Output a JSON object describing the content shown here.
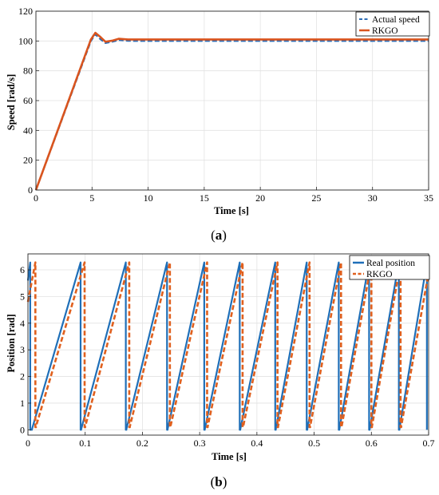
{
  "chart_data": [
    {
      "type": "line",
      "caption": {
        "open": "(",
        "letter": "a",
        "close": ")"
      },
      "xlabel": "Time [s]",
      "ylabel": "Speed [rad/s]",
      "xlim": [
        0,
        35
      ],
      "ylim": [
        0,
        120
      ],
      "xticks": [
        0,
        5,
        10,
        15,
        20,
        25,
        30,
        35
      ],
      "yticks": [
        0,
        20,
        40,
        60,
        80,
        100,
        120
      ],
      "grid": true,
      "legend_position": "top-right",
      "series": [
        {
          "name": "Actual speed",
          "color": "#2b6cb5",
          "style": "dashed",
          "x": [
            0,
            4.9,
            5.3,
            5.7,
            6.2,
            6.8,
            7.4,
            8.2,
            9.5,
            35
          ],
          "y": [
            0,
            100,
            104.5,
            101.5,
            98.6,
            99.5,
            100.6,
            100.1,
            100,
            100
          ]
        },
        {
          "name": "RKGO",
          "color": "#d9541e",
          "style": "solid",
          "x": [
            0,
            4.9,
            5.3,
            5.7,
            6.2,
            6.8,
            7.4,
            8.2,
            9.5,
            35
          ],
          "y": [
            0,
            101,
            105.5,
            103,
            99.5,
            100.2,
            101.5,
            101,
            101,
            101
          ]
        }
      ]
    },
    {
      "type": "line",
      "caption": {
        "open": "(",
        "letter": "b",
        "close": ")"
      },
      "xlabel": "Time [s]",
      "ylabel": "Position [rad]",
      "xlim": [
        0,
        0.7
      ],
      "ylim": [
        -0.2,
        6.6
      ],
      "xticks": [
        0,
        0.1,
        0.2,
        0.3,
        0.4,
        0.5,
        0.6,
        0.7
      ],
      "yticks": [
        0,
        1,
        2,
        3,
        4,
        5,
        6
      ],
      "grid": true,
      "legend_position": "top-right",
      "series": [
        {
          "name": "Real position",
          "color": "#1f6fb8",
          "style": "solid",
          "x": [
            0,
            0.004,
            0.004,
            0.007,
            0.007,
            0.092,
            0.092,
            0.093,
            0.093,
            0.171,
            0.171,
            0.172,
            0.172,
            0.243,
            0.243,
            0.244,
            0.244,
            0.308,
            0.308,
            0.309,
            0.309,
            0.37,
            0.37,
            0.371,
            0.371,
            0.432,
            0.432,
            0.433,
            0.433,
            0.487,
            0.487,
            0.488,
            0.488,
            0.543,
            0.543,
            0.544,
            0.544,
            0.596,
            0.596,
            0.597,
            0.597,
            0.648,
            0.648,
            0.649,
            0.649,
            0.697,
            0.697
          ],
          "y": [
            5.6,
            6.28,
            0,
            0,
            0.02,
            6.28,
            0,
            0,
            0.02,
            6.28,
            0,
            0,
            0.02,
            6.28,
            0,
            0,
            0.02,
            6.28,
            0,
            0,
            0.02,
            6.28,
            0,
            0,
            0.02,
            6.28,
            0,
            0,
            0.02,
            6.28,
            0,
            0,
            0.02,
            6.28,
            0,
            0,
            0.02,
            6.28,
            0,
            0,
            0.02,
            6.28,
            0,
            0,
            0.02,
            6.28,
            0
          ]
        },
        {
          "name": "RKGO",
          "color": "#e0601e",
          "style": "dashed",
          "x": [
            0,
            0.013,
            0.013,
            0.014,
            0.014,
            0.099,
            0.099,
            0.1,
            0.1,
            0.177,
            0.177,
            0.178,
            0.178,
            0.248,
            0.248,
            0.249,
            0.249,
            0.313,
            0.313,
            0.314,
            0.314,
            0.375,
            0.375,
            0.376,
            0.376,
            0.436,
            0.436,
            0.437,
            0.437,
            0.492,
            0.492,
            0.493,
            0.493,
            0.547,
            0.547,
            0.548,
            0.548,
            0.6,
            0.6,
            0.601,
            0.601,
            0.651,
            0.651,
            0.652,
            0.652,
            0.7
          ],
          "y": [
            4.8,
            6.28,
            0.1,
            0.1,
            0.12,
            6.28,
            0.1,
            0.1,
            0.12,
            6.28,
            0.1,
            0.1,
            0.12,
            6.28,
            0.1,
            0.1,
            0.12,
            6.28,
            0.1,
            0.1,
            0.12,
            6.28,
            0.1,
            0.1,
            0.12,
            6.28,
            0.1,
            0.1,
            0.12,
            6.28,
            0.1,
            0.1,
            0.12,
            6.28,
            0.1,
            0.1,
            0.12,
            6.28,
            0.1,
            0.1,
            0.12,
            6.28,
            0.1,
            0.1,
            0.12,
            5.9
          ]
        }
      ]
    }
  ]
}
